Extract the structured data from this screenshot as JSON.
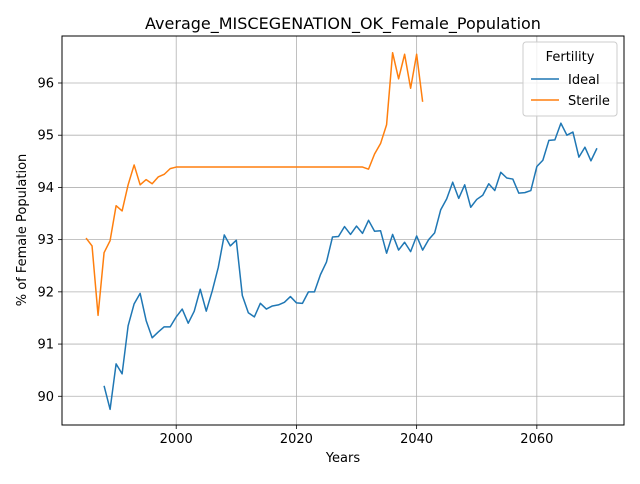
{
  "chart_data": {
    "type": "line",
    "title": "Average_MISCEGENATION_OK_Female_Population",
    "xlabel": "Years",
    "ylabel": "% of Female Population",
    "xlim": [
      1981,
      2074.5
    ],
    "ylim": [
      89.45,
      96.9
    ],
    "xticks": [
      2000,
      2020,
      2040,
      2060
    ],
    "yticks": [
      90,
      91,
      92,
      93,
      94,
      95,
      96
    ],
    "grid": true,
    "legend": {
      "title": "Fertility",
      "placement": "top-right"
    },
    "series": [
      {
        "name": "Ideal",
        "color": "#1f77b4",
        "x": [
          1988,
          1989,
          1990,
          1991,
          1992,
          1993,
          1994,
          1995,
          1996,
          1997,
          1998,
          1999,
          2000,
          2001,
          2002,
          2003,
          2004,
          2005,
          2006,
          2007,
          2008,
          2009,
          2010,
          2011,
          2012,
          2013,
          2014,
          2015,
          2016,
          2017,
          2018,
          2019,
          2020,
          2021,
          2022,
          2023,
          2024,
          2025,
          2026,
          2027,
          2028,
          2029,
          2030,
          2031,
          2032,
          2033,
          2034,
          2035,
          2036,
          2037,
          2038,
          2039,
          2040,
          2041,
          2042,
          2043,
          2044,
          2045,
          2046,
          2047,
          2048,
          2049,
          2050,
          2051,
          2052,
          2053,
          2054,
          2055,
          2056,
          2057,
          2058,
          2059,
          2060,
          2061,
          2062,
          2063,
          2064,
          2065,
          2066,
          2067,
          2068,
          2069,
          2070
        ],
        "values": [
          90.2,
          89.75,
          90.62,
          90.43,
          91.35,
          91.77,
          91.97,
          91.45,
          91.12,
          91.23,
          91.33,
          91.33,
          91.52,
          91.67,
          91.4,
          91.63,
          92.05,
          91.63,
          92.02,
          92.47,
          93.09,
          92.88,
          92.99,
          91.93,
          91.6,
          91.52,
          91.78,
          91.67,
          91.73,
          91.75,
          91.8,
          91.91,
          91.79,
          91.78,
          92.0,
          92.0,
          92.33,
          92.57,
          93.05,
          93.06,
          93.25,
          93.1,
          93.26,
          93.12,
          93.37,
          93.16,
          93.17,
          92.74,
          93.1,
          92.8,
          92.95,
          92.77,
          93.07,
          92.8,
          93.0,
          93.13,
          93.57,
          93.78,
          94.1,
          93.79,
          94.05,
          93.62,
          93.77,
          93.85,
          94.07,
          93.94,
          94.29,
          94.18,
          94.16,
          93.89,
          93.9,
          93.94,
          94.4,
          94.52,
          94.9,
          94.91,
          95.23,
          95.0,
          95.06,
          94.58,
          94.77,
          94.51,
          94.75
        ]
      },
      {
        "name": "Sterile",
        "color": "#ff7f0e",
        "x": [
          1985,
          1986,
          1987,
          1988,
          1989,
          1990,
          1991,
          1992,
          1993,
          1994,
          1995,
          1996,
          1997,
          1998,
          1999,
          2000,
          2001,
          2002,
          2003,
          2004,
          2005,
          2006,
          2007,
          2008,
          2009,
          2010,
          2011,
          2012,
          2013,
          2014,
          2015,
          2016,
          2017,
          2018,
          2019,
          2020,
          2021,
          2022,
          2023,
          2024,
          2025,
          2026,
          2027,
          2028,
          2029,
          2030,
          2031,
          2032,
          2033,
          2034,
          2035,
          2036,
          2037,
          2038,
          2039,
          2040,
          2041
        ],
        "values": [
          93.03,
          92.88,
          91.55,
          92.75,
          92.98,
          93.65,
          93.55,
          94.05,
          94.43,
          94.05,
          94.15,
          94.07,
          94.2,
          94.25,
          94.36,
          94.39,
          94.39,
          94.39,
          94.39,
          94.39,
          94.39,
          94.39,
          94.39,
          94.39,
          94.39,
          94.39,
          94.39,
          94.39,
          94.39,
          94.39,
          94.39,
          94.39,
          94.39,
          94.39,
          94.39,
          94.39,
          94.39,
          94.39,
          94.39,
          94.39,
          94.39,
          94.39,
          94.39,
          94.39,
          94.39,
          94.39,
          94.39,
          94.35,
          94.64,
          94.84,
          95.2,
          96.58,
          96.08,
          96.55,
          95.9,
          96.55,
          95.64
        ]
      }
    ]
  }
}
